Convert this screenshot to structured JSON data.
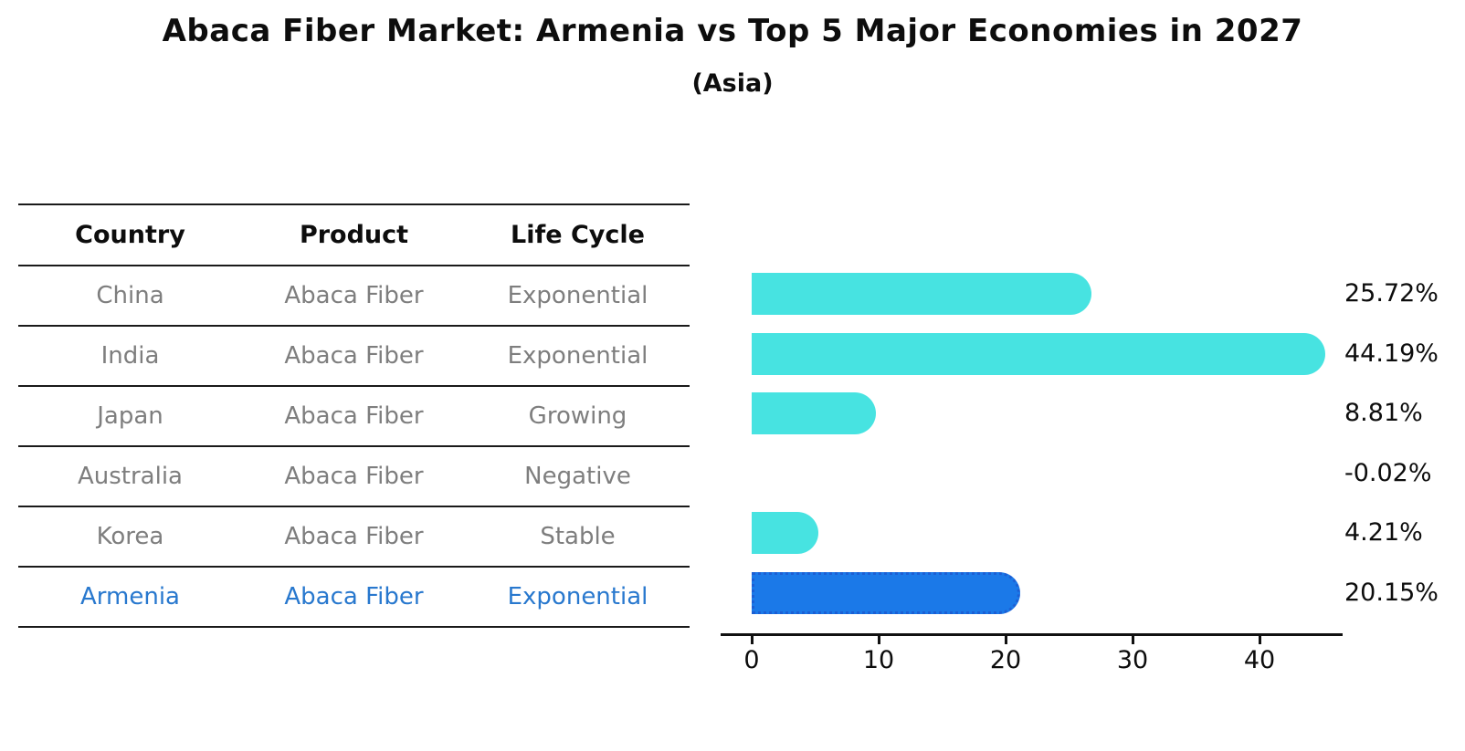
{
  "title": "Abaca Fiber Market: Armenia vs Top 5 Major Economies in 2027",
  "subtitle": "(Asia)",
  "table": {
    "headers": [
      "Country",
      "Product",
      "Life Cycle"
    ],
    "rows": [
      {
        "country": "China",
        "product": "Abaca Fiber",
        "life_cycle": "Exponential",
        "highlight": false
      },
      {
        "country": "India",
        "product": "Abaca Fiber",
        "life_cycle": "Exponential",
        "highlight": false
      },
      {
        "country": "Japan",
        "product": "Abaca Fiber",
        "life_cycle": "Growing",
        "highlight": false
      },
      {
        "country": "Australia",
        "product": "Abaca Fiber",
        "life_cycle": "Negative",
        "highlight": false
      },
      {
        "country": "Korea",
        "product": "Abaca Fiber",
        "life_cycle": "Stable",
        "highlight": false
      },
      {
        "country": "Armenia",
        "product": "Abaca Fiber",
        "life_cycle": "Exponential",
        "highlight": true
      }
    ]
  },
  "chart_data": {
    "type": "bar",
    "orientation": "horizontal",
    "title": "Abaca Fiber Market: Armenia vs Top 5 Major Economies in 2027 (Asia)",
    "categories": [
      "China",
      "India",
      "Japan",
      "Australia",
      "Korea",
      "Armenia"
    ],
    "values": [
      25.72,
      44.19,
      8.81,
      -0.02,
      4.21,
      20.15
    ],
    "value_labels": [
      "25.72%",
      "44.19%",
      "8.81%",
      "-0.02%",
      "4.21%",
      "20.15%"
    ],
    "x_ticks": [
      0,
      10,
      20,
      30,
      40
    ],
    "xlim": [
      0,
      46.5
    ],
    "grid": false,
    "legend": "none",
    "highlight_index": 5
  },
  "colors": {
    "bar": "#47e3e1",
    "highlight_bar": "#1b79e8",
    "highlight_border": "#1c5fd4",
    "row_text": "#7e7e7e",
    "highlight_text": "#2878ce",
    "axis": "#111111"
  }
}
